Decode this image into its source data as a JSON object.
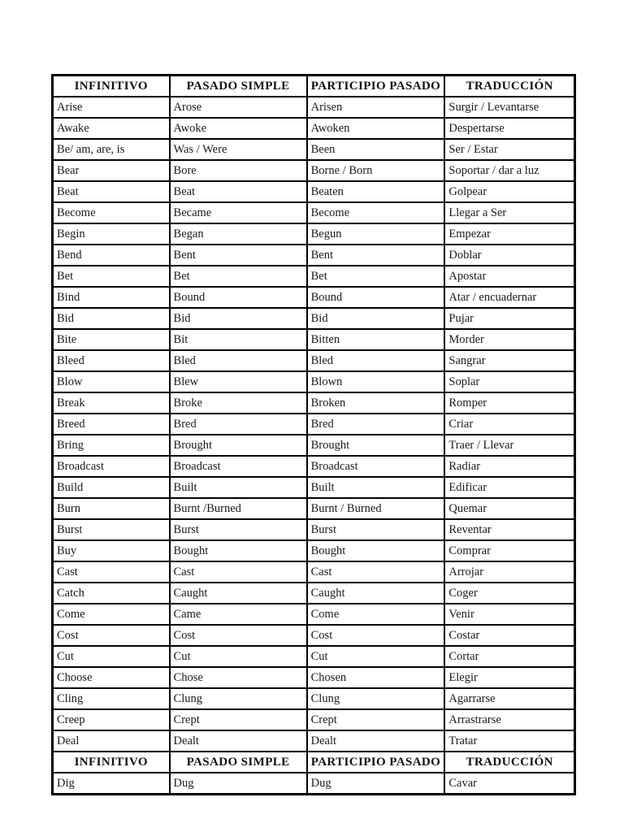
{
  "document": {
    "background_color": "#ffffff",
    "border_color": "#000000",
    "text_color": "#1a1a1a"
  },
  "table": {
    "columns": [
      "INFINITIVO",
      "PASADO SIMPLE",
      "PARTICIPIO PASADO",
      "TRADUCCIÓN"
    ],
    "sections": [
      {
        "rows": [
          [
            "Arise",
            "Arose",
            "Arisen",
            "Surgir / Levantarse"
          ],
          [
            "Awake",
            "Awoke",
            "Awoken",
            "Despertarse"
          ],
          [
            "Be/ am, are, is",
            "Was / Were",
            "Been",
            "Ser / Estar"
          ],
          [
            "Bear",
            "Bore",
            "Borne / Born",
            "Soportar / dar a luz"
          ],
          [
            "Beat",
            "Beat",
            "Beaten",
            "Golpear"
          ],
          [
            "Become",
            "Became",
            "Become",
            "Llegar a Ser"
          ],
          [
            "Begin",
            "Began",
            "Begun",
            "Empezar"
          ],
          [
            "Bend",
            "Bent",
            "Bent",
            "Doblar"
          ],
          [
            "Bet",
            "Bet",
            "Bet",
            "Apostar"
          ],
          [
            "Bind",
            "Bound",
            "Bound",
            "Atar / encuadernar"
          ],
          [
            "Bid",
            "Bid",
            "Bid",
            "Pujar"
          ],
          [
            "Bite",
            "Bit",
            "Bitten",
            "Morder"
          ],
          [
            "Bleed",
            "Bled",
            "Bled",
            "Sangrar"
          ],
          [
            "Blow",
            "Blew",
            "Blown",
            "Soplar"
          ],
          [
            "Break",
            "Broke",
            "Broken",
            "Romper"
          ],
          [
            "Breed",
            "Bred",
            "Bred",
            "Criar"
          ],
          [
            "Bring",
            "Brought",
            "Brought",
            "Traer / Llevar"
          ],
          [
            "Broadcast",
            "Broadcast",
            "Broadcast",
            "Radiar"
          ],
          [
            "Build",
            "Built",
            "Built",
            "Edificar"
          ],
          [
            "Burn",
            "Burnt /Burned",
            "Burnt / Burned",
            "Quemar"
          ],
          [
            "Burst",
            "Burst",
            "Burst",
            "Reventar"
          ],
          [
            "Buy",
            "Bought",
            "Bought",
            "Comprar"
          ],
          [
            "Cast",
            "Cast",
            "Cast",
            "Arrojar"
          ],
          [
            "Catch",
            "Caught",
            "Caught",
            "Coger"
          ],
          [
            "Come",
            "Came",
            "Come",
            "Venir"
          ],
          [
            "Cost",
            "Cost",
            "Cost",
            "Costar"
          ],
          [
            "Cut",
            "Cut",
            "Cut",
            "Cortar"
          ],
          [
            "Choose",
            "Chose",
            "Chosen",
            "Elegir"
          ],
          [
            "Cling",
            "Clung",
            "Clung",
            "Agarrarse"
          ],
          [
            "Creep",
            "Crept",
            "Crept",
            "Arrastrarse"
          ],
          [
            "Deal",
            "Dealt",
            "Dealt",
            "Tratar"
          ]
        ]
      },
      {
        "rows": [
          [
            "Dig",
            "Dug",
            "Dug",
            "Cavar"
          ]
        ]
      }
    ]
  }
}
